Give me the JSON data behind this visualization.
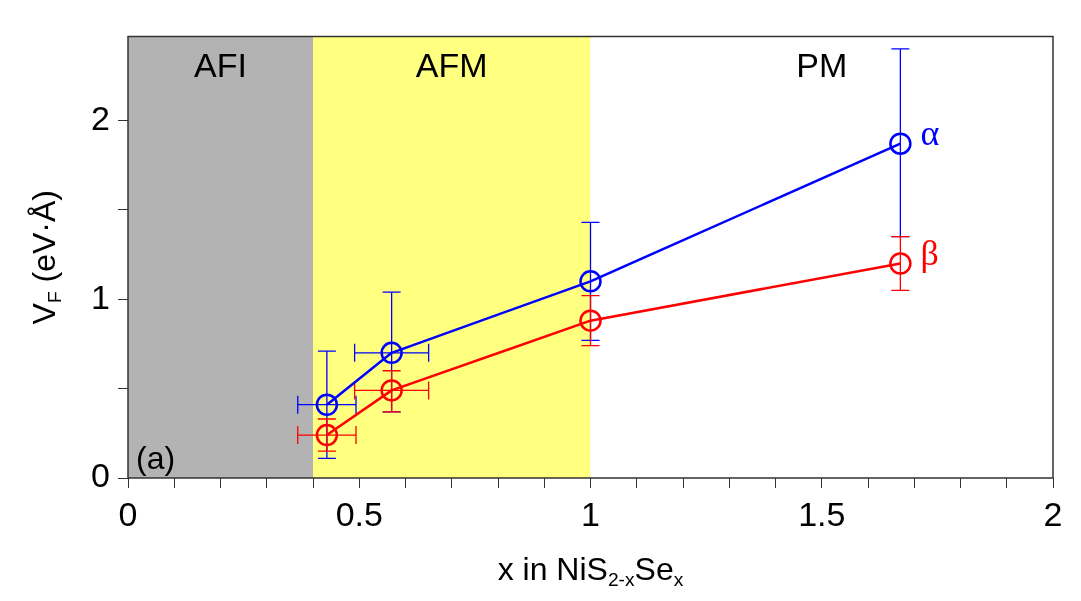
{
  "chart_data": {
    "type": "line",
    "xlabel": "x in NiS$_{2-x}$Se$_{x}$",
    "ylabel": "V$_{F}$ (eV·Å)",
    "xlim": [
      0,
      2
    ],
    "ylim": [
      0,
      2.47
    ],
    "xticks": [
      0,
      {
        "value": 0.1,
        "label": null
      },
      {
        "value": 0.2,
        "label": null
      },
      {
        "value": 0.3,
        "label": null
      },
      {
        "value": 0.4,
        "label": null
      },
      0.5,
      {
        "value": 0.6,
        "label": null
      },
      {
        "value": 0.7,
        "label": null
      },
      {
        "value": 0.8,
        "label": null
      },
      {
        "value": 0.9,
        "label": null
      },
      1,
      {
        "value": 1.1,
        "label": null
      },
      {
        "value": 1.2,
        "label": null
      },
      {
        "value": 1.3,
        "label": null
      },
      {
        "value": 1.4,
        "label": null
      },
      1.5,
      {
        "value": 1.6,
        "label": null
      },
      {
        "value": 1.7,
        "label": null
      },
      {
        "value": 1.8,
        "label": null
      },
      {
        "value": 1.9,
        "label": null
      },
      2
    ],
    "yticks": [
      0,
      {
        "value": 0.5,
        "label": null
      },
      1,
      {
        "value": 1.5,
        "label": null
      },
      2
    ],
    "marker": "circle",
    "series": [
      {
        "name": "α",
        "color": "#0000ff",
        "x": [
          0.43,
          0.57,
          1.0,
          1.67
        ],
        "values": [
          0.41,
          0.7,
          1.1,
          1.87
        ],
        "errors": [
          [
            0.11,
            0.71
          ],
          [
            0.37,
            1.04
          ],
          [
            0.77,
            1.43
          ],
          [
            1.35,
            2.4
          ]
        ],
        "xerrors": [
          [
            0.367,
            0.493
          ],
          [
            0.49,
            0.65
          ],
          null,
          null
        ]
      },
      {
        "name": "β",
        "color": "#ff0000",
        "x": [
          0.43,
          0.57,
          1.0,
          1.67
        ],
        "values": [
          0.24,
          0.49,
          0.88,
          1.2
        ],
        "errors": [
          [
            0.15,
            0.33
          ],
          [
            0.37,
            0.6
          ],
          [
            0.74,
            1.02
          ],
          [
            1.05,
            1.35
          ]
        ],
        "xerrors": [
          [
            0.367,
            0.493
          ],
          [
            0.49,
            0.65
          ],
          null,
          null
        ]
      }
    ],
    "bands": [
      {
        "axis": "x",
        "from": 0,
        "to": 0.4,
        "label": "AFI",
        "color": "#b3b3b3"
      },
      {
        "axis": "x",
        "from": 0.4,
        "to": 1.0,
        "label": "AFM",
        "color": "#ffff80"
      },
      {
        "axis": "x",
        "from": 1.0,
        "to": 2,
        "label": "PM",
        "color": "#ffffff"
      }
    ],
    "annotations": [
      "(a)"
    ]
  }
}
